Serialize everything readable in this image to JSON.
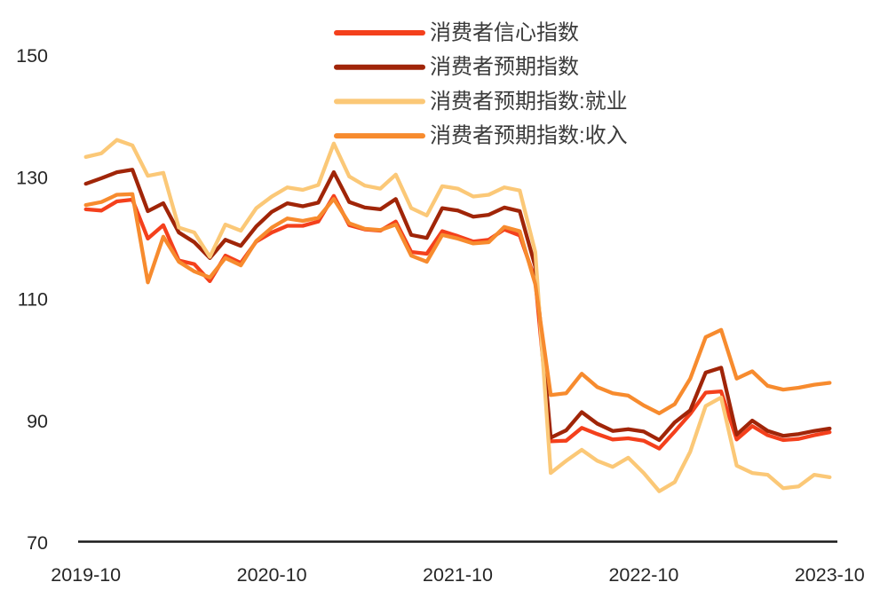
{
  "chart_data": {
    "type": "line",
    "title": "",
    "xlabel": "",
    "ylabel": "",
    "ylim": [
      70,
      150
    ],
    "y_ticks": [
      150,
      130,
      110,
      90,
      70
    ],
    "grid": false,
    "legend_position": "top-center",
    "background_color": "#ffffff",
    "axis_color": "#1a1a1a",
    "tick_label_color": "#262626",
    "legend_text_color": "#3b3b3b",
    "x_tick_every": 12,
    "x": [
      "2019-10",
      "2019-11",
      "2019-12",
      "2020-01",
      "2020-02",
      "2020-03",
      "2020-04",
      "2020-05",
      "2020-06",
      "2020-07",
      "2020-08",
      "2020-09",
      "2020-10",
      "2020-11",
      "2020-12",
      "2021-01",
      "2021-02",
      "2021-03",
      "2021-04",
      "2021-05",
      "2021-06",
      "2021-07",
      "2021-08",
      "2021-09",
      "2021-10",
      "2021-11",
      "2021-12",
      "2022-01",
      "2022-02",
      "2022-03",
      "2022-04",
      "2022-05",
      "2022-06",
      "2022-07",
      "2022-08",
      "2022-09",
      "2022-10",
      "2022-11",
      "2022-12",
      "2023-01",
      "2023-02",
      "2023-03",
      "2023-04",
      "2023-05",
      "2023-06",
      "2023-07",
      "2023-08",
      "2023-09",
      "2023-10"
    ],
    "x_tick_labels": [
      "2019-10",
      "2020-10",
      "2021-10",
      "2022-10",
      "2023-10"
    ],
    "series": [
      {
        "name": "消费者信心指数",
        "color": "#F4401C",
        "values": [
          124.8,
          124.6,
          126.1,
          126.4,
          120.0,
          122.2,
          116.4,
          115.8,
          113.0,
          117.2,
          116.0,
          119.5,
          121.0,
          122.1,
          122.1,
          122.8,
          127.0,
          122.2,
          121.5,
          121.3,
          122.8,
          117.8,
          117.5,
          121.2,
          120.4,
          119.5,
          119.8,
          121.5,
          120.5,
          113.2,
          86.7,
          86.8,
          88.9,
          87.9,
          87.0,
          87.2,
          86.8,
          85.5,
          88.3,
          91.2,
          94.7,
          94.9,
          87.0,
          89.2,
          87.7,
          86.9,
          87.1,
          87.7,
          88.2
        ]
      },
      {
        "name": "消费者预期指数",
        "color": "#A02508",
        "values": [
          129.0,
          129.9,
          130.9,
          131.3,
          124.5,
          125.8,
          121.0,
          119.4,
          116.8,
          119.8,
          118.8,
          122.0,
          124.4,
          125.8,
          125.3,
          125.9,
          130.9,
          126.0,
          125.1,
          124.8,
          126.5,
          120.6,
          120.1,
          125.0,
          124.6,
          123.6,
          123.9,
          125.1,
          124.5,
          115.4,
          87.3,
          88.5,
          91.5,
          89.6,
          88.4,
          88.7,
          88.3,
          86.9,
          89.8,
          91.8,
          98.0,
          98.8,
          87.8,
          90.1,
          88.4,
          87.6,
          87.9,
          88.4,
          88.8
        ]
      },
      {
        "name": "消费者预期指数:就业",
        "color": "#FBC877",
        "values": [
          133.4,
          134.0,
          136.2,
          135.3,
          130.3,
          130.8,
          121.8,
          121.0,
          117.0,
          122.3,
          121.3,
          125.0,
          126.9,
          128.4,
          128.0,
          128.8,
          135.6,
          130.2,
          128.7,
          128.2,
          130.5,
          125.0,
          123.8,
          128.6,
          128.2,
          126.9,
          127.2,
          128.4,
          127.9,
          117.8,
          81.5,
          83.5,
          85.3,
          83.5,
          82.5,
          84.0,
          81.5,
          78.5,
          80.0,
          85.0,
          92.5,
          93.9,
          82.7,
          81.5,
          81.2,
          79.0,
          79.3,
          81.2,
          80.8
        ]
      },
      {
        "name": "消费者预期指数:收入",
        "color": "#F78B2E",
        "values": [
          125.5,
          126.0,
          127.2,
          127.3,
          112.8,
          120.3,
          116.2,
          114.6,
          113.6,
          116.8,
          115.6,
          119.6,
          121.8,
          123.3,
          122.9,
          123.4,
          126.5,
          122.5,
          121.6,
          121.4,
          122.3,
          117.2,
          116.2,
          120.6,
          120.0,
          119.2,
          119.4,
          121.9,
          121.2,
          112.5,
          94.3,
          94.6,
          97.8,
          95.6,
          94.6,
          94.2,
          92.6,
          91.3,
          92.8,
          97.0,
          103.8,
          105.0,
          97.0,
          98.2,
          95.8,
          95.2,
          95.5,
          96.0,
          96.3
        ]
      }
    ]
  }
}
